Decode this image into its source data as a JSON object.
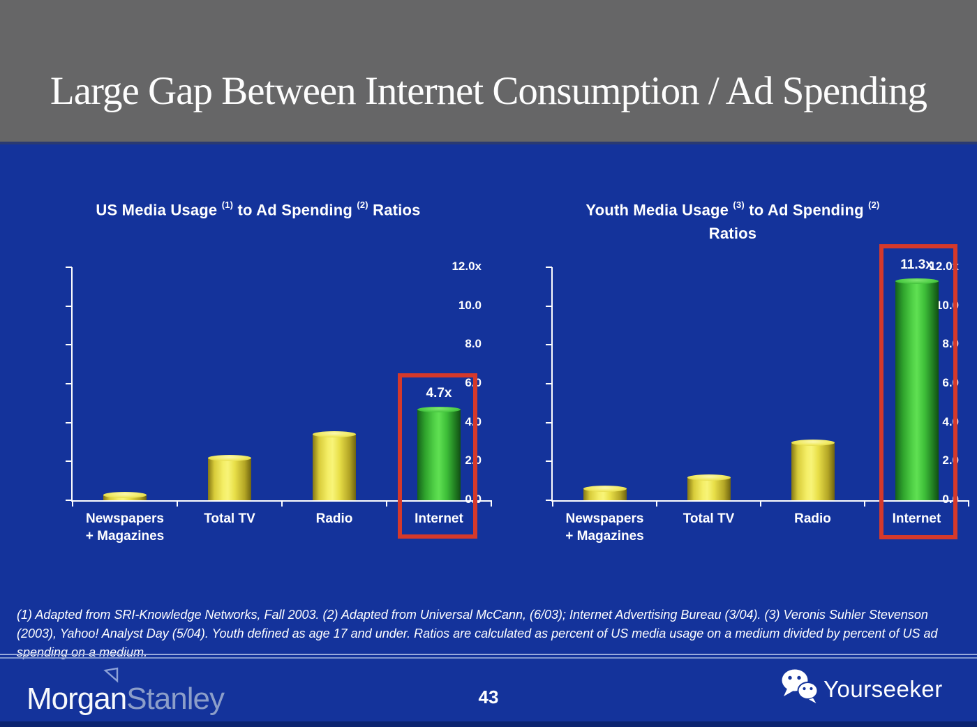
{
  "slide": {
    "title": "Large Gap Between Internet Consumption / Ad Spending",
    "page_number": "43",
    "footnote": "(1) Adapted from SRI-Knowledge Networks, Fall 2003.  (2) Adapted from Universal McCann, (6/03); Internet Advertising Bureau (3/04). (3) Veronis Suhler Stevenson (2003), Yahoo! Analyst Day (5/04).  Youth defined as age 17 and under.  Ratios are calculated as percent of US media usage on a medium divided by percent of US ad spending on a medium."
  },
  "footer": {
    "logo_morgan": "Morgan",
    "logo_stanley": "Stanley",
    "brand": "Yourseeker"
  },
  "colors": {
    "background": "#14339B",
    "header_gray": "#666667",
    "bar_yellow": "#EDE24A",
    "bar_green": "#3FC43A",
    "highlight_red": "#D5392B",
    "axis_white": "#FFFFFF",
    "stanley_text": "#8C9EC9"
  },
  "chart_data": [
    {
      "type": "bar",
      "title_parts": [
        {
          "t": "US Media Usage "
        },
        {
          "t": "(1)",
          "sup": true
        },
        {
          "t": " to Ad Spending "
        },
        {
          "t": "(2)",
          "sup": true
        },
        {
          "t": " Ratios"
        }
      ],
      "title_line2": "",
      "categories": [
        "Newspapers + Magazines",
        "Total TV",
        "Radio",
        "Internet"
      ],
      "category_label_lines": [
        [
          "Newspapers",
          "+ Magazines"
        ],
        [
          "Total TV"
        ],
        [
          "Radio"
        ],
        [
          "Internet"
        ]
      ],
      "values": [
        0.3,
        2.2,
        3.4,
        4.7
      ],
      "bar_colors": [
        "yellow",
        "yellow",
        "yellow",
        "green"
      ],
      "value_labels": [
        "",
        "",
        "",
        "4.7x"
      ],
      "highlight_index": 3,
      "y_ticks": [
        "12.0x",
        "10.0",
        "8.0",
        "6.0",
        "4.0",
        "2.0",
        "0.0"
      ],
      "y_tick_values": [
        12,
        10,
        8,
        6,
        4,
        2,
        0
      ],
      "ylim": [
        0,
        12
      ],
      "grid": false,
      "legend": null,
      "xlabel": "",
      "ylabel": ""
    },
    {
      "type": "bar",
      "title_parts": [
        {
          "t": "Youth Media Usage "
        },
        {
          "t": "(3)",
          "sup": true
        },
        {
          "t": " to Ad Spending "
        },
        {
          "t": "(2)",
          "sup": true
        }
      ],
      "title_line2": "Ratios",
      "categories": [
        "Newspapers + Magazines",
        "Total TV",
        "Radio",
        "Internet"
      ],
      "category_label_lines": [
        [
          "Newspapers",
          "+ Magazines"
        ],
        [
          "Total TV"
        ],
        [
          "Radio"
        ],
        [
          "Internet"
        ]
      ],
      "values": [
        0.6,
        1.2,
        3.0,
        11.3
      ],
      "bar_colors": [
        "yellow",
        "yellow",
        "yellow",
        "green"
      ],
      "value_labels": [
        "",
        "",
        "",
        "11.3x"
      ],
      "highlight_index": 3,
      "y_ticks": [
        "12.0x",
        "10.0",
        "8.0",
        "6.0",
        "4.0",
        "2.0",
        "0.0"
      ],
      "y_tick_values": [
        12,
        10,
        8,
        6,
        4,
        2,
        0
      ],
      "ylim": [
        0,
        12
      ],
      "grid": false,
      "legend": null,
      "xlabel": "",
      "ylabel": ""
    }
  ]
}
